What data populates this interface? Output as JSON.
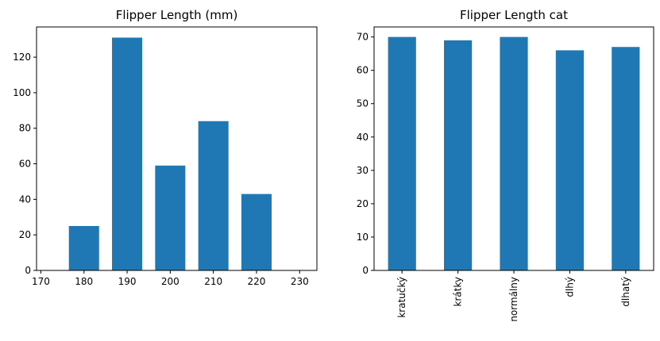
{
  "colors": {
    "bar": "#1f77b4",
    "axes": "#000000",
    "background": "#ffffff"
  },
  "chart_data": [
    {
      "type": "bar",
      "title": "Flipper Length (mm)",
      "xlabel": "",
      "ylabel": "",
      "categories": [
        "180",
        "190",
        "200",
        "210",
        "220"
      ],
      "x": [
        180,
        190,
        200,
        210,
        220
      ],
      "values": [
        25,
        131,
        59,
        84,
        43
      ],
      "bar_width": 7,
      "xlim": [
        169,
        234
      ],
      "ylim": [
        0,
        137
      ],
      "xticks": [
        170,
        180,
        190,
        200,
        210,
        220,
        230
      ],
      "yticks": [
        0,
        20,
        40,
        60,
        80,
        100,
        120
      ],
      "grid": false,
      "legend": "none"
    },
    {
      "type": "bar",
      "title": "Flipper Length cat",
      "xlabel": "",
      "ylabel": "",
      "categories": [
        "kratučký",
        "krátky",
        "normálny",
        "dlhý",
        "dlhatý"
      ],
      "values": [
        70,
        69,
        70,
        66,
        67
      ],
      "ylim": [
        0,
        73
      ],
      "yticks": [
        0,
        10,
        20,
        30,
        40,
        50,
        60,
        70
      ],
      "tick_rotation": 90,
      "grid": false,
      "legend": "none"
    }
  ]
}
